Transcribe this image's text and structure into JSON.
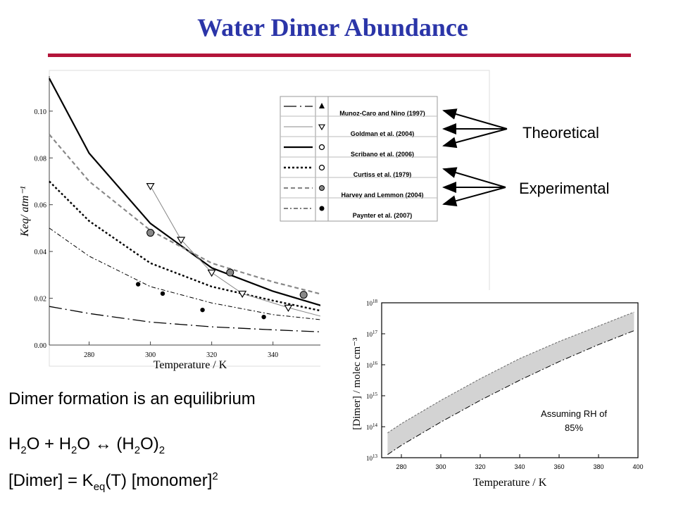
{
  "slide": {
    "title": "Water Dimer Abundance",
    "theoretical_label": "Theoretical",
    "experimental_label": "Experimental",
    "bullets": {
      "line1": "Dimer formation is an equilibrium",
      "line2": "H₂O + H₂O ↔ (H₂O)₂",
      "line3": "[Dimer] = K_eq(T) [monomer]²"
    },
    "accent_colors": {
      "title": "#2b35a8",
      "rule": "#b3153a"
    }
  },
  "chart_data": [
    {
      "type": "line",
      "xlabel": "Temperature / K",
      "ylabel": "Keq/ atm⁻¹",
      "xlim": [
        267,
        358
      ],
      "ylim": [
        0,
        0.115
      ],
      "xticks": [
        280,
        300,
        320,
        340
      ],
      "yticks": [
        0.0,
        0.02,
        0.04,
        0.06,
        0.08,
        0.1
      ],
      "ytick_labels": [
        "0.00",
        "0.02",
        "0.04",
        "0.06",
        "0.08",
        "0.10"
      ],
      "grid": false,
      "legend_position": "top-right",
      "series": [
        {
          "name": "Munoz-Caro and Nino (1997)",
          "style": "long-dash-dot",
          "marker": "filled-triangle-up",
          "x": [
            267,
            280,
            300,
            320,
            340,
            358
          ],
          "y": [
            0.0165,
            0.0135,
            0.0098,
            0.0078,
            0.0065,
            0.0055
          ]
        },
        {
          "name": "Goldman et al. (2004)",
          "style": "thin-line",
          "marker": "open-triangle-down",
          "x": [
            300,
            310,
            320,
            330,
            345,
            358
          ],
          "y": [
            0.068,
            0.045,
            0.031,
            0.022,
            0.016,
            0.0115
          ]
        },
        {
          "name": "Scribano et al. (2006)",
          "style": "solid",
          "marker": "open-circle",
          "x": [
            267,
            280,
            300,
            320,
            340,
            358
          ],
          "y": [
            0.114,
            0.082,
            0.052,
            0.033,
            0.023,
            0.016
          ]
        },
        {
          "name": "Curtiss et al. (1979)",
          "style": "dotted-bold",
          "marker": "open-circle",
          "x": [
            267,
            280,
            300,
            320,
            340,
            358
          ],
          "y": [
            0.07,
            0.053,
            0.035,
            0.025,
            0.019,
            0.014
          ]
        },
        {
          "name": "Harvey and Lemmon (2004)",
          "style": "gray-dashed",
          "marker": "gray-circle",
          "x": [
            267,
            280,
            300,
            320,
            340,
            358
          ],
          "y": [
            0.09,
            0.07,
            0.049,
            0.035,
            0.027,
            0.021
          ]
        },
        {
          "name": "Paynter et al. (2007)",
          "style": "dash-dot",
          "marker": "filled-circle",
          "x": [
            267,
            280,
            300,
            320,
            340,
            358
          ],
          "y": [
            0.05,
            0.038,
            0.025,
            0.018,
            0.013,
            0.0105
          ]
        }
      ],
      "points": {
        "gray_circles": {
          "x": [
            300,
            326,
            350
          ],
          "y": [
            0.048,
            0.031,
            0.0215
          ]
        },
        "open_triangles": {
          "x": [
            300,
            310,
            320,
            330,
            345,
            358
          ],
          "y": [
            0.068,
            0.045,
            0.031,
            0.022,
            0.016,
            0.0115
          ]
        },
        "filled_circles": {
          "x": [
            296,
            304,
            317,
            337
          ],
          "y": [
            0.026,
            0.022,
            0.015,
            0.012
          ]
        }
      }
    },
    {
      "type": "area",
      "xlabel": "Temperature / K",
      "ylabel": "[Dimer] / molec cm⁻³",
      "log_y": true,
      "xlim": [
        270,
        400
      ],
      "ylim": [
        10000000000000.0,
        1e+18
      ],
      "xticks": [
        280,
        300,
        320,
        340,
        360,
        380,
        400
      ],
      "yticks_exp": [
        13,
        14,
        15,
        16,
        17,
        18
      ],
      "annotation": "Assuming RH of 85%",
      "band_color": "#d3d3d3",
      "upper": {
        "x": [
          273,
          280,
          300,
          320,
          340,
          360,
          380,
          398
        ],
        "y_log10": [
          13.8,
          14.1,
          14.85,
          15.55,
          16.2,
          16.75,
          17.25,
          17.7
        ]
      },
      "lower": {
        "x": [
          273,
          280,
          300,
          320,
          340,
          360,
          380,
          398
        ],
        "y_log10": [
          13.1,
          13.4,
          14.15,
          14.85,
          15.5,
          16.1,
          16.65,
          17.1
        ]
      }
    }
  ]
}
